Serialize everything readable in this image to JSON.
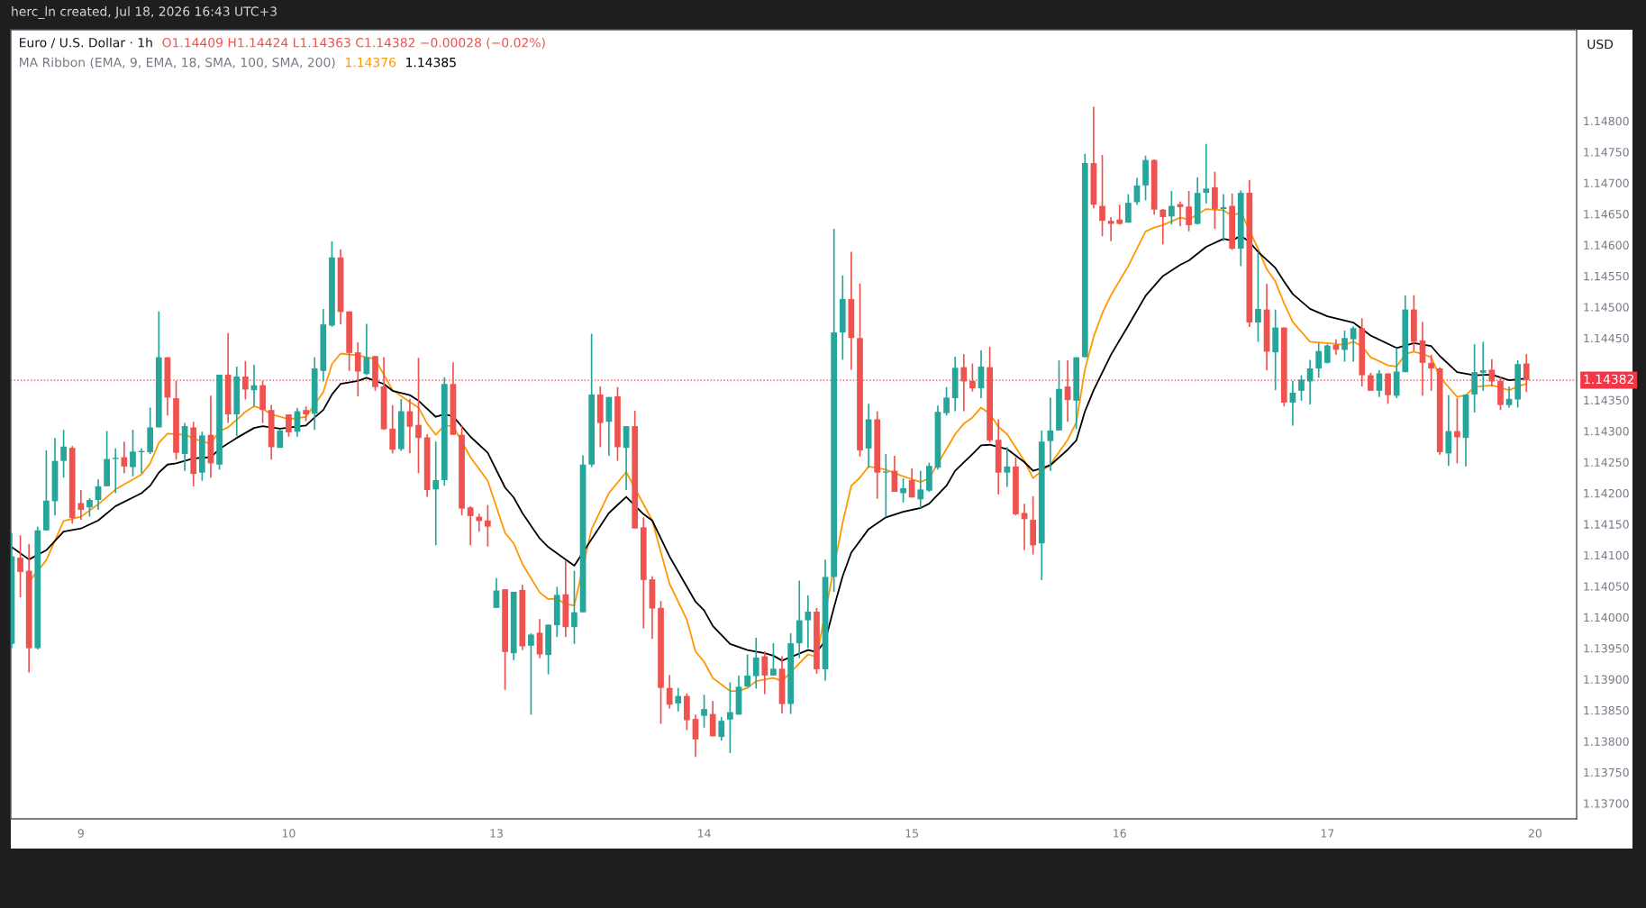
{
  "chart_data": {
    "type": "candlestick",
    "title": "Euro / U.S. Dollar · 1h",
    "subtitle": "O1.14409 H1.14424 L1.14363 C1.14382 −0.00028 (−0.02%)",
    "annotations": [
      "herc_ln created, Jul 18, 2026 16:43 UTC+3",
      "MA Ribbon (EMA, 9, EMA, 18, SMA, 100, SMA, 200)",
      "1.14376",
      "1.14385"
    ],
    "ylabel": "USD",
    "grid": false,
    "categories": [
      null,
      null,
      null,
      null,
      null,
      null,
      null,
      null,
      "9",
      null,
      null,
      null,
      null,
      null,
      null,
      null,
      null,
      null,
      null,
      null,
      null,
      null,
      null,
      null,
      null,
      null,
      null,
      null,
      null,
      null,
      null,
      null,
      "10",
      null,
      null,
      null,
      null,
      null,
      null,
      null,
      null,
      null,
      null,
      null,
      null,
      null,
      null,
      null,
      null,
      null,
      null,
      null,
      null,
      null,
      null,
      null,
      "13",
      null,
      null,
      null,
      null,
      null,
      null,
      null,
      null,
      null,
      null,
      null,
      null,
      null,
      null,
      null,
      null,
      null,
      null,
      null,
      null,
      null,
      null,
      null,
      "14",
      null,
      null,
      null,
      null,
      null,
      null,
      null,
      null,
      null,
      null,
      null,
      null,
      null,
      null,
      null,
      null,
      null,
      null,
      null,
      null,
      null,
      null,
      null,
      "15",
      null,
      null,
      null,
      null,
      null,
      null,
      null,
      null,
      null,
      null,
      null,
      null,
      null,
      null,
      null,
      null,
      null,
      null,
      null,
      null,
      null,
      null,
      null,
      "16",
      null,
      null,
      null,
      null,
      null,
      null,
      null,
      null,
      null,
      null,
      null,
      null,
      null,
      null,
      null,
      null,
      null,
      null,
      null,
      null,
      null,
      null,
      null,
      "17",
      null,
      null,
      null,
      null,
      null,
      null,
      null,
      null,
      null,
      null,
      null,
      null,
      null,
      null,
      null,
      null,
      null,
      null,
      null,
      null,
      null,
      null,
      null,
      "20"
    ],
    "ohlc": [
      [
        1.13957,
        1.14136,
        1.1395,
        1.14098
      ],
      [
        1.14096,
        1.14132,
        1.14032,
        1.14073
      ],
      [
        1.14075,
        1.14118,
        1.13911,
        1.1395
      ],
      [
        1.1395,
        1.14146,
        1.13948,
        1.1414
      ],
      [
        1.1414,
        1.14269,
        1.1414,
        1.14188
      ],
      [
        1.14187,
        1.14289,
        1.14164,
        1.14252
      ],
      [
        1.14252,
        1.14302,
        1.14225,
        1.14275
      ],
      [
        1.14273,
        1.14276,
        1.14151,
        1.1416
      ],
      [
        1.14184,
        1.14205,
        1.14157,
        1.14173
      ],
      [
        1.14177,
        1.14192,
        1.14162,
        1.14189
      ],
      [
        1.14189,
        1.14222,
        1.14173,
        1.14211
      ],
      [
        1.14211,
        1.143,
        1.14211,
        1.14255
      ],
      [
        1.14255,
        1.14272,
        1.142,
        1.14257
      ],
      [
        1.14258,
        1.14283,
        1.14232,
        1.14243
      ],
      [
        1.14242,
        1.14302,
        1.14227,
        1.14267
      ],
      [
        1.14266,
        1.14272,
        1.14232,
        1.14268
      ],
      [
        1.14266,
        1.14338,
        1.14263,
        1.14306
      ],
      [
        1.14306,
        1.14493,
        1.14306,
        1.14419
      ],
      [
        1.14419,
        1.14419,
        1.14325,
        1.14354
      ],
      [
        1.14353,
        1.14381,
        1.14254,
        1.14265
      ],
      [
        1.14263,
        1.14313,
        1.14236,
        1.14308
      ],
      [
        1.14306,
        1.14315,
        1.14211,
        1.14231
      ],
      [
        1.14233,
        1.14299,
        1.1422,
        1.14293
      ],
      [
        1.14294,
        1.14357,
        1.14225,
        1.14248
      ],
      [
        1.14246,
        1.14391,
        1.14238,
        1.14391
      ],
      [
        1.14391,
        1.14458,
        1.14313,
        1.14327
      ],
      [
        1.14327,
        1.14404,
        1.14292,
        1.14388
      ],
      [
        1.14388,
        1.14413,
        1.14351,
        1.14367
      ],
      [
        1.14366,
        1.14407,
        1.1434,
        1.14374
      ],
      [
        1.14374,
        1.14381,
        1.14313,
        1.14334
      ],
      [
        1.14334,
        1.14342,
        1.14254,
        1.14274
      ],
      [
        1.14273,
        1.14302,
        1.14273,
        1.14301
      ],
      [
        1.14327,
        1.14327,
        1.14291,
        1.14298
      ],
      [
        1.14299,
        1.14337,
        1.14291,
        1.14332
      ],
      [
        1.14334,
        1.1434,
        1.14316,
        1.14327
      ],
      [
        1.14328,
        1.14419,
        1.14302,
        1.14401
      ],
      [
        1.14397,
        1.14497,
        1.1438,
        1.14472
      ],
      [
        1.1447,
        1.14606,
        1.14468,
        1.1458
      ],
      [
        1.1458,
        1.14593,
        1.14472,
        1.14492
      ],
      [
        1.14493,
        1.14493,
        1.14397,
        1.14426
      ],
      [
        1.14427,
        1.14443,
        1.14356,
        1.14396
      ],
      [
        1.14392,
        1.14473,
        1.1439,
        1.14419
      ],
      [
        1.14421,
        1.14421,
        1.14365,
        1.14371
      ],
      [
        1.14372,
        1.14419,
        1.14302,
        1.14303
      ],
      [
        1.14304,
        1.14342,
        1.14264,
        1.1427
      ],
      [
        1.14271,
        1.14352,
        1.14268,
        1.14332
      ],
      [
        1.14332,
        1.14352,
        1.14264,
        1.14307
      ],
      [
        1.1431,
        1.14418,
        1.14232,
        1.14289
      ],
      [
        1.1429,
        1.14295,
        1.14194,
        1.14205
      ],
      [
        1.14206,
        1.14283,
        1.14116,
        1.14221
      ],
      [
        1.14221,
        1.14387,
        1.14212,
        1.14376
      ],
      [
        1.14376,
        1.14411,
        1.14294,
        1.14294
      ],
      [
        1.14294,
        1.14309,
        1.14164,
        1.14175
      ],
      [
        1.14177,
        1.14179,
        1.14116,
        1.14163
      ],
      [
        1.14162,
        1.14167,
        1.14138,
        1.14155
      ],
      [
        1.14156,
        1.14181,
        1.14114,
        1.14146
      ],
      [
        1.14015,
        1.14063,
        1.14015,
        1.14043
      ],
      [
        1.14045,
        1.14045,
        1.13883,
        1.13944
      ],
      [
        1.13942,
        1.14041,
        1.13931,
        1.14041
      ],
      [
        1.14044,
        1.14052,
        1.13947,
        1.13953
      ],
      [
        1.13954,
        1.13974,
        1.13843,
        1.13972
      ],
      [
        1.13975,
        1.13997,
        1.13934,
        1.1394
      ],
      [
        1.13939,
        1.13988,
        1.13908,
        1.13988
      ],
      [
        1.13987,
        1.14049,
        1.13968,
        1.14036
      ],
      [
        1.14037,
        1.14091,
        1.13968,
        1.13984
      ],
      [
        1.13984,
        1.14075,
        1.13957,
        1.14008
      ],
      [
        1.14008,
        1.14261,
        1.14008,
        1.14246
      ],
      [
        1.14246,
        1.14457,
        1.14242,
        1.14359
      ],
      [
        1.14359,
        1.14372,
        1.14274,
        1.14313
      ],
      [
        1.14315,
        1.14355,
        1.1426,
        1.14355
      ],
      [
        1.14356,
        1.14371,
        1.14252,
        1.14274
      ],
      [
        1.14273,
        1.14308,
        1.14205,
        1.14308
      ],
      [
        1.14308,
        1.14333,
        1.14143,
        1.14143
      ],
      [
        1.14145,
        1.14161,
        1.13982,
        1.1406
      ],
      [
        1.14061,
        1.14066,
        1.13965,
        1.14014
      ],
      [
        1.14015,
        1.14026,
        1.13828,
        1.13886
      ],
      [
        1.13886,
        1.13907,
        1.13853,
        1.13859
      ],
      [
        1.13861,
        1.13886,
        1.13848,
        1.13873
      ],
      [
        1.13873,
        1.13877,
        1.13818,
        1.13834
      ],
      [
        1.13836,
        1.13843,
        1.13775,
        1.13803
      ],
      [
        1.13841,
        1.13875,
        1.13822,
        1.13852
      ],
      [
        1.13844,
        1.13865,
        1.13808,
        1.13808
      ],
      [
        1.13807,
        1.13839,
        1.13801,
        1.13833
      ],
      [
        1.13835,
        1.13895,
        1.13781,
        1.13847
      ],
      [
        1.13843,
        1.13906,
        1.13843,
        1.13888
      ],
      [
        1.13888,
        1.1394,
        1.13888,
        1.13906
      ],
      [
        1.13905,
        1.13967,
        1.13885,
        1.13935
      ],
      [
        1.13937,
        1.13945,
        1.13876,
        1.13906
      ],
      [
        1.13906,
        1.13958,
        1.13906,
        1.13917
      ],
      [
        1.13917,
        1.13937,
        1.13845,
        1.1386
      ],
      [
        1.1386,
        1.13974,
        1.13844,
        1.13958
      ],
      [
        1.13958,
        1.14059,
        1.13934,
        1.13995
      ],
      [
        1.13995,
        1.14035,
        1.1395,
        1.14009
      ],
      [
        1.14009,
        1.14015,
        1.13909,
        1.13916
      ],
      [
        1.13916,
        1.14093,
        1.13898,
        1.14065
      ],
      [
        1.14065,
        1.14626,
        1.14041,
        1.14459
      ],
      [
        1.14459,
        1.14551,
        1.14415,
        1.14513
      ],
      [
        1.14513,
        1.14589,
        1.14399,
        1.1445
      ],
      [
        1.1445,
        1.14538,
        1.14259,
        1.14269
      ],
      [
        1.14272,
        1.14344,
        1.14241,
        1.14319
      ],
      [
        1.14319,
        1.14332,
        1.14191,
        1.14233
      ],
      [
        1.14233,
        1.14263,
        1.14161,
        1.14235
      ],
      [
        1.14236,
        1.1426,
        1.14202,
        1.14202
      ],
      [
        1.142,
        1.14224,
        1.14185,
        1.14208
      ],
      [
        1.14221,
        1.1424,
        1.14193,
        1.14193
      ],
      [
        1.1419,
        1.14236,
        1.14176,
        1.14206
      ],
      [
        1.14204,
        1.14249,
        1.14202,
        1.14244
      ],
      [
        1.14241,
        1.14341,
        1.14238,
        1.14331
      ],
      [
        1.14329,
        1.14371,
        1.14325,
        1.14354
      ],
      [
        1.14353,
        1.1442,
        1.14332,
        1.14402
      ],
      [
        1.14403,
        1.14424,
        1.14332,
        1.1438
      ],
      [
        1.14381,
        1.14409,
        1.14364,
        1.14369
      ],
      [
        1.14369,
        1.1443,
        1.14353,
        1.14404
      ],
      [
        1.14403,
        1.14436,
        1.14282,
        1.14285
      ],
      [
        1.14286,
        1.14319,
        1.14198,
        1.14233
      ],
      [
        1.14233,
        1.14274,
        1.1421,
        1.14243
      ],
      [
        1.14243,
        1.14258,
        1.14164,
        1.14166
      ],
      [
        1.14168,
        1.14183,
        1.14108,
        1.14158
      ],
      [
        1.14157,
        1.14195,
        1.14101,
        1.14116
      ],
      [
        1.14119,
        1.14301,
        1.1406,
        1.14283
      ],
      [
        1.14284,
        1.14354,
        1.14236,
        1.14301
      ],
      [
        1.14301,
        1.14414,
        1.14301,
        1.14368
      ],
      [
        1.14372,
        1.14414,
        1.14315,
        1.1435
      ],
      [
        1.14349,
        1.14419,
        1.14303,
        1.14419
      ],
      [
        1.14419,
        1.14747,
        1.14419,
        1.14732
      ],
      [
        1.14732,
        1.14823,
        1.14659,
        1.14665
      ],
      [
        1.14663,
        1.14745,
        1.14614,
        1.14639
      ],
      [
        1.14639,
        1.14645,
        1.14606,
        1.14634
      ],
      [
        1.14641,
        1.14665,
        1.14633,
        1.14634
      ],
      [
        1.14636,
        1.14682,
        1.14636,
        1.14668
      ],
      [
        1.14669,
        1.14708,
        1.14665,
        1.14696
      ],
      [
        1.14696,
        1.14744,
        1.14672,
        1.14737
      ],
      [
        1.14737,
        1.14738,
        1.14649,
        1.14657
      ],
      [
        1.14657,
        1.14658,
        1.14601,
        1.14645
      ],
      [
        1.14646,
        1.14687,
        1.14633,
        1.14663
      ],
      [
        1.14666,
        1.1467,
        1.1463,
        1.14661
      ],
      [
        1.14662,
        1.14687,
        1.14622,
        1.14632
      ],
      [
        1.14634,
        1.14709,
        1.14633,
        1.14684
      ],
      [
        1.14684,
        1.14763,
        1.14667,
        1.14691
      ],
      [
        1.14693,
        1.14718,
        1.14626,
        1.14658
      ],
      [
        1.14658,
        1.14682,
        1.14606,
        1.14661
      ],
      [
        1.14663,
        1.14683,
        1.14592,
        1.14594
      ],
      [
        1.14594,
        1.14688,
        1.14566,
        1.14684
      ],
      [
        1.14684,
        1.14705,
        1.14468,
        1.14475
      ],
      [
        1.14475,
        1.14589,
        1.14444,
        1.14497
      ],
      [
        1.14496,
        1.14537,
        1.14398,
        1.14428
      ],
      [
        1.14427,
        1.14496,
        1.14366,
        1.14467
      ],
      [
        1.14467,
        1.14467,
        1.1434,
        1.14346
      ],
      [
        1.14346,
        1.14381,
        1.14309,
        1.14362
      ],
      [
        1.14365,
        1.1439,
        1.14349,
        1.14383
      ],
      [
        1.1438,
        1.14415,
        1.14343,
        1.14401
      ],
      [
        1.14401,
        1.14442,
        1.14386,
        1.14429
      ],
      [
        1.1441,
        1.1444,
        1.14409,
        1.14438
      ],
      [
        1.14439,
        1.14448,
        1.14423,
        1.14431
      ],
      [
        1.14431,
        1.14462,
        1.14412,
        1.1445
      ],
      [
        1.14448,
        1.14469,
        1.14412,
        1.14466
      ],
      [
        1.14466,
        1.14482,
        1.14372,
        1.1439
      ],
      [
        1.1439,
        1.14394,
        1.14365,
        1.14365
      ],
      [
        1.14365,
        1.14398,
        1.14355,
        1.14393
      ],
      [
        1.14393,
        1.14393,
        1.14344,
        1.14358
      ],
      [
        1.14357,
        1.14434,
        1.14353,
        1.14396
      ],
      [
        1.14395,
        1.14519,
        1.14395,
        1.14496
      ],
      [
        1.14496,
        1.14519,
        1.14429,
        1.14444
      ],
      [
        1.14446,
        1.14476,
        1.14357,
        1.1441
      ],
      [
        1.1441,
        1.14423,
        1.14365,
        1.14401
      ],
      [
        1.14401,
        1.14403,
        1.14262,
        1.14266
      ],
      [
        1.14264,
        1.14358,
        1.14244,
        1.143
      ],
      [
        1.143,
        1.14353,
        1.14248,
        1.1429
      ],
      [
        1.14289,
        1.14359,
        1.14243,
        1.14359
      ],
      [
        1.14359,
        1.1444,
        1.1433,
        1.14395
      ],
      [
        1.14394,
        1.14444,
        1.14365,
        1.14398
      ],
      [
        1.14399,
        1.14416,
        1.14372,
        1.1438
      ],
      [
        1.14381,
        1.14387,
        1.14334,
        1.14342
      ],
      [
        1.14342,
        1.14372,
        1.14338,
        1.14352
      ],
      [
        1.14351,
        1.14414,
        1.14338,
        1.14408
      ],
      [
        1.14409,
        1.14424,
        1.14363,
        1.14382
      ],
      null
    ],
    "colors": [
      "#26a69a",
      "#ef5350",
      "#ef5350",
      "#26a69a",
      "#26a69a",
      "#26a69a",
      "#26a69a",
      "#ef5350",
      "#ef5350",
      "#26a69a",
      "#26a69a",
      "#26a69a",
      "#26a69a",
      "#ef5350",
      "#26a69a",
      "#26a69a",
      "#26a69a",
      "#26a69a",
      "#ef5350",
      "#ef5350",
      "#26a69a",
      "#ef5350",
      "#26a69a",
      "#ef5350",
      "#26a69a",
      "#ef5350",
      "#26a69a",
      "#ef5350",
      "#26a69a",
      "#ef5350",
      "#ef5350",
      "#26a69a",
      "#ef5350",
      "#26a69a",
      "#ef5350",
      "#26a69a",
      "#26a69a",
      "#26a69a",
      "#ef5350",
      "#ef5350",
      "#ef5350",
      "#26a69a",
      "#ef5350",
      "#ef5350",
      "#ef5350",
      "#26a69a",
      "#ef5350",
      "#ef5350",
      "#ef5350",
      "#26a69a",
      "#26a69a",
      "#ef5350",
      "#ef5350",
      "#ef5350",
      "#ef5350",
      "#ef5350",
      "#26a69a",
      "#ef5350",
      "#26a69a",
      "#ef5350",
      "#26a69a",
      "#ef5350",
      "#26a69a",
      "#26a69a",
      "#ef5350",
      "#26a69a",
      "#26a69a",
      "#26a69a",
      "#ef5350",
      "#26a69a",
      "#ef5350",
      "#26a69a",
      "#ef5350",
      "#ef5350",
      "#ef5350",
      "#ef5350",
      "#ef5350",
      "#26a69a",
      "#ef5350",
      "#ef5350",
      "#26a69a",
      "#ef5350",
      "#26a69a",
      "#26a69a",
      "#26a69a",
      "#26a69a",
      "#26a69a",
      "#ef5350",
      "#26a69a",
      "#ef5350",
      "#26a69a",
      "#26a69a",
      "#26a69a",
      "#ef5350",
      "#26a69a",
      "#26a69a",
      "#26a69a",
      "#ef5350",
      "#ef5350",
      "#26a69a",
      "#ef5350",
      "#26a69a",
      "#ef5350",
      "#26a69a",
      "#ef5350",
      "#26a69a",
      "#26a69a",
      "#26a69a",
      "#26a69a",
      "#26a69a",
      "#ef5350",
      "#ef5350",
      "#26a69a",
      "#ef5350",
      "#ef5350",
      "#26a69a",
      "#ef5350",
      "#ef5350",
      "#ef5350",
      "#26a69a",
      "#26a69a",
      "#26a69a",
      "#ef5350",
      "#26a69a",
      "#26a69a",
      "#ef5350",
      "#ef5350",
      "#ef5350",
      "#ef5350",
      "#26a69a",
      "#26a69a",
      "#26a69a",
      "#ef5350",
      "#ef5350",
      "#26a69a",
      "#ef5350",
      "#ef5350",
      "#26a69a",
      "#26a69a",
      "#ef5350",
      "#26a69a",
      "#ef5350",
      "#26a69a",
      "#ef5350",
      "#26a69a",
      "#ef5350",
      "#26a69a",
      "#ef5350",
      "#26a69a",
      "#26a69a",
      "#26a69a",
      "#26a69a",
      "#26a69a",
      "#ef5350",
      "#26a69a",
      "#26a69a",
      "#ef5350",
      "#ef5350",
      "#26a69a",
      "#ef5350",
      "#26a69a",
      "#26a69a",
      "#ef5350",
      "#ef5350",
      "#ef5350",
      "#ef5350",
      "#26a69a",
      "#ef5350",
      "#26a69a",
      "#26a69a",
      "#26a69a",
      "#ef5350",
      "#ef5350",
      "#26a69a",
      "#26a69a",
      "#ef5350",
      null
    ],
    "series": [
      {
        "type": "line",
        "color": "#ff9800",
        "values": [
          null,
          null,
          1.14057,
          null,
          1.14092,
          null,
          1.14155,
          null,
          1.14162,
          null,
          1.14182,
          null,
          1.14206,
          null,
          null,
          1.1423,
          1.14248,
          1.14281,
          1.14296,
          null,
          1.14294,
          null,
          1.14283,
          1.1428,
          1.143,
          1.14306,
          null,
          1.14331,
          1.1434,
          1.14336,
          1.14327,
          null,
          1.14319,
          null,
          1.14323,
          null,
          1.14363,
          1.14408,
          1.14425,
          null,
          1.14422,
          null,
          1.14416,
          null,
          1.14366,
          null,
          1.14347,
          1.14338,
          1.14312,
          1.14294,
          1.14309,
          1.14308,
          null,
          1.14258,
          null,
          1.1422,
          null,
          1.14136,
          1.14119,
          1.14086,
          null,
          1.1404,
          1.14029,
          1.1403,
          1.14021,
          1.14019,
          null,
          1.14142,
          null,
          1.142,
          1.14217,
          1.14234,
          null,
          null,
          1.14156,
          null,
          1.14054,
          null,
          1.13996,
          1.13945,
          1.13928,
          1.13902,
          null,
          1.13881,
          1.13881,
          1.13886,
          1.13897,
          null,
          1.13902,
          1.13897,
          null,
          null,
          1.1394,
          1.13936,
          null,
          null,
          1.14152,
          1.14212,
          1.14225,
          1.14243,
          null,
          1.14238,
          null,
          1.14227,
          null,
          1.14218,
          1.14224,
          null,
          null,
          1.14295,
          1.14312,
          1.14322,
          1.14338,
          1.14328,
          1.14307,
          1.14295,
          null,
          1.14252,
          1.14224,
          1.14236,
          1.14246,
          null,
          1.14286,
          1.14314,
          1.144,
          1.14452,
          1.1449,
          1.14519,
          null,
          1.14566,
          null,
          1.14622,
          1.14628,
          1.14632,
          null,
          1.14644,
          1.14641,
          null,
          1.14658,
          null,
          1.14656,
          1.14647,
          1.14653,
          null,
          1.14594,
          1.14561,
          1.14541,
          1.14506,
          1.14476,
          null,
          1.14444,
          null,
          1.14442,
          null,
          1.14439,
          1.14444,
          1.14437,
          1.14419,
          null,
          1.14406,
          1.14404,
          1.14424,
          1.14428,
          1.14424,
          1.14419,
          1.14387,
          null,
          1.14355,
          1.14358,
          1.14371,
          null,
          1.14374,
          null,
          1.14366,
          1.14372,
          1.14376,
          null
        ]
      },
      {
        "type": "line",
        "color": "#000000",
        "values": [
          1.14113,
          null,
          1.14093,
          null,
          1.14108,
          null,
          1.14138,
          null,
          1.14143,
          null,
          1.14156,
          null,
          1.14179,
          null,
          null,
          1.142,
          1.14212,
          1.14233,
          1.14246,
          1.14248,
          null,
          1.14256,
          null,
          1.14258,
          1.14271,
          null,
          1.14289,
          null,
          1.14305,
          1.14308,
          null,
          1.14304,
          null,
          null,
          1.14309,
          1.14322,
          1.14334,
          1.14359,
          1.14376,
          null,
          1.14381,
          1.14386,
          null,
          1.14376,
          1.14365,
          null,
          1.14358,
          1.14349,
          null,
          1.14323,
          1.14327,
          1.14324,
          null,
          1.14291,
          null,
          1.14265,
          null,
          1.14209,
          1.14193,
          1.14168,
          null,
          1.14127,
          1.14113,
          1.14103,
          null,
          1.14083,
          null,
          1.14126,
          null,
          1.14168,
          1.14181,
          1.14194,
          null,
          1.14166,
          1.14156,
          null,
          1.14098,
          null,
          null,
          1.14025,
          1.14011,
          1.13986,
          null,
          1.13957,
          null,
          1.13947,
          null,
          1.13942,
          1.13938,
          1.1393,
          null,
          null,
          1.13947,
          1.13944,
          1.13962,
          1.14016,
          1.14066,
          1.14104,
          null,
          1.14142,
          null,
          1.14161,
          null,
          1.1417,
          null,
          1.14176,
          1.14183,
          null,
          1.14212,
          1.14236,
          null,
          1.14263,
          1.14277,
          1.14278,
          null,
          1.14271,
          null,
          1.1425,
          1.14236,
          1.1424,
          1.14245,
          null,
          1.1427,
          1.14285,
          1.14332,
          1.14366,
          null,
          1.14423,
          null,
          1.1447,
          null,
          1.14518,
          null,
          1.1455,
          null,
          1.14568,
          1.14575,
          null,
          1.14597,
          null,
          1.1461,
          1.14607,
          1.14615,
          1.14605,
          1.14589,
          null,
          1.14563,
          1.14541,
          1.14521,
          null,
          1.14497,
          null,
          1.14485,
          null,
          null,
          1.14475,
          null,
          1.14454,
          null,
          null,
          1.14434,
          null,
          1.14442,
          null,
          1.14437,
          1.14421,
          null,
          1.14395,
          null,
          1.1439,
          null,
          1.14391,
          null,
          1.14382,
          null,
          1.14385,
          null
        ]
      }
    ],
    "ref_lines": [
      {
        "axis": "y",
        "value": 1.14382,
        "label": "1.14382",
        "color": "#f23645",
        "line_style": "dotted"
      }
    ],
    "ylim": [
      1.13675,
      1.14947
    ],
    "yticks": [
      {
        "value": 1.137,
        "label": "1.13700"
      },
      {
        "value": 1.1375,
        "label": "1.13750"
      },
      {
        "value": 1.138,
        "label": "1.13800"
      },
      {
        "value": 1.1385,
        "label": "1.13850"
      },
      {
        "value": 1.139,
        "label": "1.13900"
      },
      {
        "value": 1.1395,
        "label": "1.13950"
      },
      {
        "value": 1.14,
        "label": "1.14000"
      },
      {
        "value": 1.1405,
        "label": "1.14050"
      },
      {
        "value": 1.141,
        "label": "1.14100"
      },
      {
        "value": 1.1415,
        "label": "1.14150"
      },
      {
        "value": 1.142,
        "label": "1.14200"
      },
      {
        "value": 1.1425,
        "label": "1.14250"
      },
      {
        "value": 1.143,
        "label": "1.14300"
      },
      {
        "value": 1.1435,
        "label": "1.14350"
      },
      {
        "value": 1.1445,
        "label": "1.14450"
      },
      {
        "value": 1.145,
        "label": "1.14500"
      },
      {
        "value": 1.1455,
        "label": "1.14550"
      },
      {
        "value": 1.146,
        "label": "1.14600"
      },
      {
        "value": 1.1465,
        "label": "1.14650"
      },
      {
        "value": 1.147,
        "label": "1.14700"
      },
      {
        "value": 1.1475,
        "label": "1.14750"
      },
      {
        "value": 1.148,
        "label": "1.14800"
      }
    ]
  }
}
